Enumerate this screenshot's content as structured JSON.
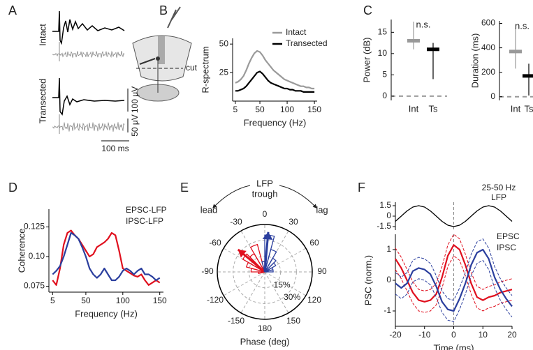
{
  "panel_labels": [
    "A",
    "B",
    "C",
    "D",
    "E",
    "F"
  ],
  "panel_a": {
    "row_labels": [
      "Intact",
      "Transected"
    ],
    "cut_label": "cut",
    "scale_bars": [
      "100 μV",
      "50 μV",
      "100 ms"
    ]
  },
  "chart_data": [
    {
      "type": "line",
      "ylabel": "R-spectrum",
      "xlabel": "Frequency (Hz)",
      "x": [
        5,
        10,
        15,
        20,
        25,
        30,
        35,
        40,
        45,
        50,
        55,
        60,
        65,
        70,
        75,
        80,
        85,
        90,
        95,
        100,
        105,
        110,
        115,
        120,
        125,
        130,
        135,
        140,
        145,
        150
      ],
      "xlim": [
        0,
        155
      ],
      "xticks": [
        5,
        50,
        100,
        150
      ],
      "ylim": [
        0,
        55
      ],
      "yticks": [
        25,
        50
      ],
      "legend": "upper right",
      "legend_lines": true,
      "series": [
        {
          "name": "Intact",
          "color": "#9a9a9a",
          "values": [
            16,
            17,
            19,
            22,
            27,
            33,
            38,
            42,
            44,
            43,
            40,
            36,
            33,
            30,
            27,
            25,
            23,
            21,
            19,
            18,
            17,
            16,
            15,
            14,
            13,
            13,
            12,
            12,
            11,
            11
          ]
        },
        {
          "name": "Transected",
          "color": "#000000",
          "values": [
            9,
            9,
            10,
            11,
            13,
            16,
            19,
            22,
            25,
            26,
            24,
            21,
            18,
            16,
            15,
            14,
            13,
            12,
            11,
            11,
            10,
            10,
            9,
            9,
            9,
            8,
            8,
            8,
            8,
            8
          ]
        }
      ]
    },
    {
      "type": "errorbar",
      "ylabel": "Power (dB)",
      "categories": [
        "Int",
        "Ts"
      ],
      "colors": [
        "#999999",
        "#000000"
      ],
      "values": [
        13,
        11
      ],
      "lower": [
        11,
        4
      ],
      "upper": [
        17.5,
        12.5
      ],
      "annotation": "n.s.",
      "ylim": [
        -1,
        18
      ],
      "yticks": [
        0,
        5,
        10,
        15
      ]
    },
    {
      "type": "errorbar",
      "ylabel": "Duration (ms)",
      "categories": [
        "Int",
        "Ts"
      ],
      "colors": [
        "#999999",
        "#000000"
      ],
      "values": [
        370,
        170
      ],
      "lower": [
        230,
        10
      ],
      "upper": [
        560,
        270
      ],
      "annotation": "n.s.",
      "ylim": [
        -30,
        620
      ],
      "yticks": [
        0,
        200,
        400,
        600
      ]
    },
    {
      "type": "line",
      "ylabel": "Coherence",
      "xlabel": "Frequency (Hz)",
      "x": [
        5,
        10,
        15,
        20,
        25,
        30,
        35,
        40,
        45,
        50,
        55,
        60,
        65,
        70,
        75,
        80,
        85,
        90,
        95,
        100,
        105,
        110,
        115,
        120,
        125,
        130,
        135,
        140,
        145,
        150
      ],
      "xlim": [
        0,
        155
      ],
      "xticks": [
        5,
        50,
        100,
        150
      ],
      "ylim": [
        0.07,
        0.14
      ],
      "yticks": [
        0.075,
        {
          "value": 0.1,
          "label": "0.10"
        },
        0.125
      ],
      "legend": "upper right",
      "series": [
        {
          "name": "EPSC-LFP",
          "color": "#e0101e",
          "values": [
            0.08,
            0.076,
            0.09,
            0.11,
            0.12,
            0.122,
            0.118,
            0.115,
            0.11,
            0.105,
            0.1,
            0.102,
            0.108,
            0.11,
            0.112,
            0.115,
            0.12,
            0.118,
            0.105,
            0.09,
            0.088,
            0.086,
            0.084,
            0.083,
            0.085,
            0.08,
            0.076,
            0.078,
            0.08,
            0.078
          ]
        },
        {
          "name": "IPSC-LFP",
          "color": "#2b3f9e",
          "values": [
            0.085,
            0.088,
            0.092,
            0.1,
            0.11,
            0.12,
            0.118,
            0.115,
            0.108,
            0.1,
            0.09,
            0.085,
            0.082,
            0.085,
            0.09,
            0.085,
            0.08,
            0.08,
            0.083,
            0.088,
            0.09,
            0.088,
            0.085,
            0.088,
            0.09,
            0.085,
            0.085,
            0.083,
            0.08,
            0.082
          ]
        }
      ]
    },
    {
      "type": "polar_histogram",
      "top_labels": [
        "LFP",
        "trough"
      ],
      "lead_label": "lead",
      "lag_label": "lag",
      "xlabel": "Phase (deg)",
      "angle_ticks": [
        0,
        30,
        60,
        90,
        120,
        150,
        180,
        -150,
        -120,
        -90,
        -60,
        -30
      ],
      "rlim": [
        0,
        45
      ],
      "rticks": [
        {
          "value": 15,
          "label": "15%"
        },
        {
          "value": 30,
          "label": "30%"
        }
      ],
      "series": [
        {
          "color": "#e0101e",
          "bins": [
            -105,
            -90,
            -75,
            -60,
            -45,
            -30,
            -15,
            0,
            15
          ],
          "values": [
            6,
            13,
            18,
            24,
            20,
            27,
            10,
            4
          ],
          "mean_angle": -50,
          "mean_length": 33
        },
        {
          "color": "#2b3f9e",
          "bins": [
            -15,
            0,
            15,
            30,
            45,
            60,
            75,
            90
          ],
          "values": [
            10,
            35,
            22,
            15,
            12,
            8,
            8
          ],
          "mean_angle": 5,
          "mean_length": 38
        }
      ]
    },
    {
      "type": "line",
      "annotations": [
        "25-50 Hz",
        "LFP"
      ],
      "x": [
        -20,
        -18,
        -16,
        -14,
        -12,
        -10,
        -8,
        -6,
        -4,
        -2,
        0,
        2,
        4,
        6,
        8,
        10,
        12,
        14,
        16,
        18,
        20
      ],
      "xlim": [
        -20,
        20
      ],
      "ylim": [
        -2,
        2
      ],
      "yticks": [
        1.5,
        0,
        -1.5
      ],
      "vline": 0,
      "series": [
        {
          "color": "#000000",
          "values": [
            -0.75,
            0,
            0.75,
            1.3,
            1.5,
            1.3,
            0.75,
            0,
            -0.75,
            -1.3,
            -1.5,
            -1.3,
            -0.75,
            0,
            0.75,
            1.3,
            1.5,
            1.3,
            0.75,
            0,
            -0.75
          ]
        }
      ]
    },
    {
      "type": "line",
      "ylabel": "PSC  (norm.)",
      "xlabel": "Time (ms)",
      "x": [
        -20,
        -18,
        -16,
        -14,
        -12,
        -10,
        -8,
        -6,
        -4,
        -2,
        0,
        2,
        4,
        6,
        8,
        10,
        12,
        14,
        16,
        18,
        20
      ],
      "xlim": [
        -20,
        20
      ],
      "xticks": [
        -20,
        -10,
        0,
        10,
        20
      ],
      "ylim": [
        -1.5,
        1.5
      ],
      "yticks": [
        1,
        0,
        -1
      ],
      "vline": 0,
      "legend": "upper right",
      "series": [
        {
          "name": "EPSC",
          "color": "#e0101e",
          "values": [
            0.7,
            0.4,
            0.0,
            -0.4,
            -0.65,
            -0.7,
            -0.65,
            -0.45,
            0.1,
            0.8,
            1.15,
            1.0,
            0.5,
            -0.1,
            -0.55,
            -0.65,
            -0.55,
            -0.5,
            -0.4,
            -0.35,
            -0.3
          ],
          "upper": [
            1.05,
            0.75,
            0.35,
            -0.05,
            -0.3,
            -0.35,
            -0.3,
            -0.1,
            0.45,
            1.15,
            1.5,
            1.35,
            0.85,
            0.25,
            -0.2,
            -0.3,
            -0.2,
            -0.15,
            -0.05,
            0.0,
            0.05
          ],
          "lower": [
            0.35,
            0.05,
            -0.35,
            -0.75,
            -1.0,
            -1.05,
            -1.0,
            -0.8,
            -0.25,
            0.45,
            0.8,
            0.65,
            0.15,
            -0.45,
            -0.9,
            -1.0,
            -0.9,
            -0.85,
            -0.75,
            -0.7,
            -0.65
          ]
        },
        {
          "name": "IPSC",
          "color": "#2b3f9e",
          "values": [
            -0.1,
            -0.25,
            -0.1,
            0.3,
            0.4,
            0.35,
            0.2,
            -0.2,
            -0.7,
            -0.95,
            -1.0,
            -0.6,
            -0.1,
            0.5,
            0.9,
            1.0,
            0.7,
            0.1,
            -0.3,
            -0.6,
            -0.85
          ],
          "upper": [
            0.25,
            0.1,
            0.25,
            0.65,
            0.75,
            0.7,
            0.55,
            0.15,
            -0.35,
            -0.6,
            -0.65,
            -0.25,
            0.25,
            0.85,
            1.25,
            1.35,
            1.05,
            0.45,
            0.05,
            -0.25,
            -0.5
          ],
          "lower": [
            -0.45,
            -0.6,
            -0.45,
            -0.05,
            0.05,
            0.0,
            -0.15,
            -0.55,
            -1.05,
            -1.3,
            -1.35,
            -0.95,
            -0.45,
            0.15,
            0.55,
            0.65,
            0.35,
            -0.25,
            -0.65,
            -0.95,
            -1.2
          ]
        }
      ]
    }
  ]
}
